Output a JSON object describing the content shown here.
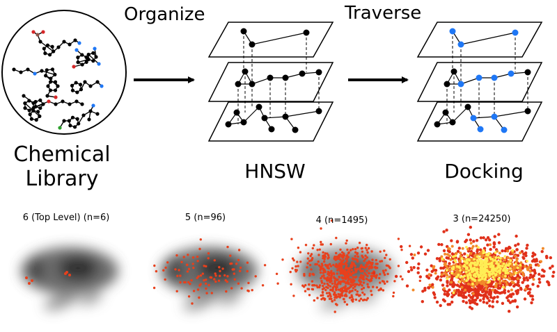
{
  "header": {
    "organize": "Organize",
    "traverse": "Traverse"
  },
  "labels": {
    "library_line1": "Chemical",
    "library_line2": "Library",
    "hnsw": "HNSW",
    "docking": "Docking"
  },
  "panels": [
    {
      "title": "6 (Top Level) (n=6)",
      "highlight_count": 6,
      "style": "sparse"
    },
    {
      "title": "5 (n=96)",
      "highlight_count": 96,
      "style": "sparse"
    },
    {
      "title": "4 (n=1495)",
      "highlight_count": 1495,
      "style": "dense"
    },
    {
      "title": "3 (n=24250)",
      "highlight_count": 24250,
      "style": "heat"
    }
  ],
  "colors": {
    "node": "#000000",
    "highlight_node": "#1f77f5",
    "panel_point": "#e8401c",
    "heat_low": "#e0301a",
    "heat_high": "#ffee55",
    "background_cloud": "#000000"
  }
}
